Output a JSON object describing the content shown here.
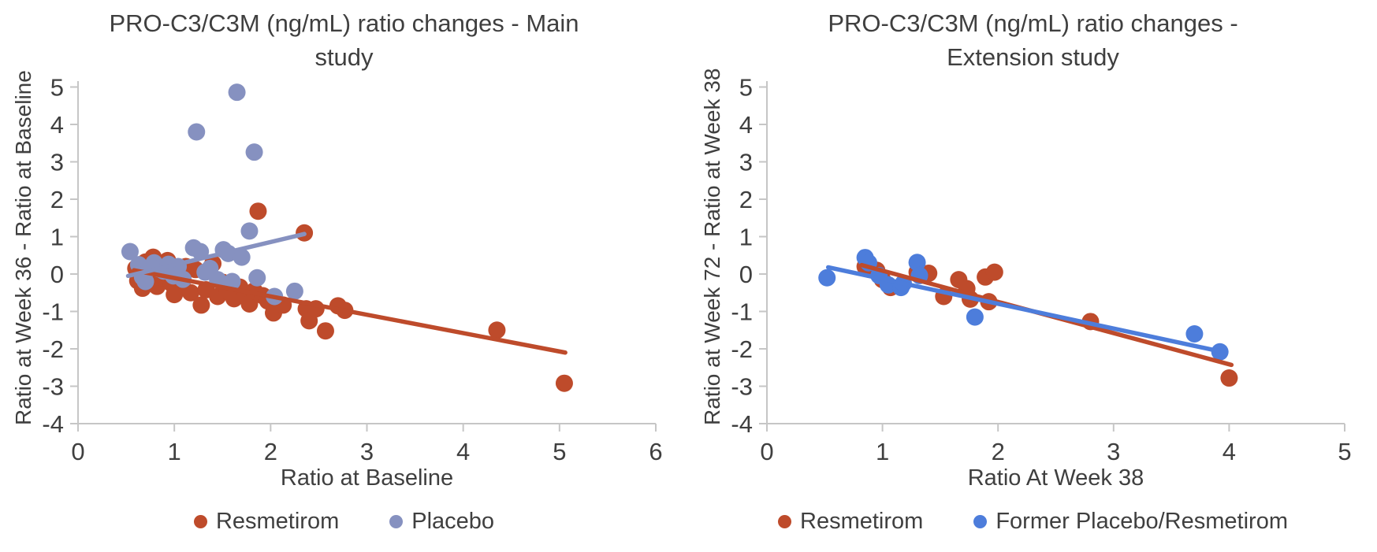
{
  "page": {
    "background": "#ffffff",
    "text_color": "#3f3f3f",
    "axis_color": "#c6c6c6"
  },
  "chart_data": [
    {
      "type": "scatter",
      "title": "PRO-C3/C3M (ng/mL) ratio changes - Main study",
      "title_lines": [
        "PRO-C3/C3M (ng/mL) ratio changes - Main",
        "study"
      ],
      "xlabel": "Ratio at Baseline",
      "ylabel": "Ratio at Week 36 - Ratio at Baseline",
      "xlim": [
        0,
        6
      ],
      "ylim": [
        -4,
        5
      ],
      "xticks": [
        0,
        1,
        2,
        3,
        4,
        5,
        6
      ],
      "yticks": [
        5,
        4,
        3,
        2,
        1,
        0,
        -1,
        -2,
        -3,
        -4
      ],
      "grid": false,
      "legend_position": "bottom",
      "series": [
        {
          "name": "Resmetirom",
          "color": "#be4b2b",
          "points": [
            [
              0.6,
              0.15
            ],
            [
              0.62,
              -0.18
            ],
            [
              0.67,
              -0.38
            ],
            [
              0.7,
              0.32
            ],
            [
              0.72,
              -0.05
            ],
            [
              0.76,
              0.12
            ],
            [
              0.78,
              0.45
            ],
            [
              0.82,
              -0.33
            ],
            [
              0.85,
              0.22
            ],
            [
              0.88,
              -0.1
            ],
            [
              0.93,
              0.36
            ],
            [
              0.97,
              -0.25
            ],
            [
              1.0,
              -0.55
            ],
            [
              1.05,
              0.1
            ],
            [
              1.08,
              -0.3
            ],
            [
              1.12,
              0.2
            ],
            [
              1.17,
              -0.5
            ],
            [
              1.22,
              0.12
            ],
            [
              1.28,
              -0.83
            ],
            [
              1.33,
              -0.42
            ],
            [
              1.4,
              0.28
            ],
            [
              1.45,
              -0.6
            ],
            [
              1.5,
              -0.22
            ],
            [
              1.55,
              -0.45
            ],
            [
              1.62,
              -0.66
            ],
            [
              1.68,
              -0.35
            ],
            [
              1.73,
              -0.52
            ],
            [
              1.78,
              -0.8
            ],
            [
              1.83,
              -0.45
            ],
            [
              1.87,
              1.68
            ],
            [
              1.92,
              -0.58
            ],
            [
              1.97,
              -0.72
            ],
            [
              2.03,
              -1.04
            ],
            [
              2.13,
              -0.83
            ],
            [
              2.35,
              1.1
            ],
            [
              2.37,
              -0.93
            ],
            [
              2.4,
              -1.25
            ],
            [
              2.47,
              -0.93
            ],
            [
              2.57,
              -1.52
            ],
            [
              2.7,
              -0.85
            ],
            [
              2.77,
              -0.97
            ],
            [
              4.35,
              -1.5
            ],
            [
              5.05,
              -2.92
            ]
          ],
          "trendline": {
            "from": [
              0.58,
              0.1
            ],
            "to": [
              5.06,
              -2.1
            ]
          }
        },
        {
          "name": "Placebo",
          "color": "#8691c0",
          "points": [
            [
              0.54,
              0.6
            ],
            [
              0.63,
              0.25
            ],
            [
              0.67,
              -0.08
            ],
            [
              0.7,
              -0.2
            ],
            [
              0.74,
              0.15
            ],
            [
              0.79,
              0.3
            ],
            [
              0.84,
              0.14
            ],
            [
              0.89,
              0.08
            ],
            [
              0.94,
              0.26
            ],
            [
              0.99,
              -0.05
            ],
            [
              1.04,
              0.2
            ],
            [
              1.09,
              -0.14
            ],
            [
              1.2,
              0.7
            ],
            [
              1.23,
              3.8
            ],
            [
              1.27,
              0.6
            ],
            [
              1.32,
              0.05
            ],
            [
              1.37,
              0.15
            ],
            [
              1.45,
              -0.15
            ],
            [
              1.51,
              0.65
            ],
            [
              1.56,
              0.55
            ],
            [
              1.6,
              -0.2
            ],
            [
              1.65,
              4.86
            ],
            [
              1.7,
              0.45
            ],
            [
              1.78,
              1.15
            ],
            [
              1.83,
              3.26
            ],
            [
              1.86,
              -0.1
            ],
            [
              2.04,
              -0.6
            ],
            [
              2.25,
              -0.46
            ]
          ],
          "trendline": {
            "from": [
              0.52,
              -0.05
            ],
            "to": [
              2.35,
              1.07
            ]
          }
        }
      ]
    },
    {
      "type": "scatter",
      "title": "PRO-C3/C3M (ng/mL) ratio changes - Extension study",
      "title_lines": [
        "PRO-C3/C3M (ng/mL) ratio changes -",
        "Extension study"
      ],
      "xlabel": "Ratio At Week 38",
      "ylabel": "Ratio at Week 72 - Ratio at Week 38",
      "xlim": [
        0,
        5
      ],
      "ylim": [
        -4,
        5
      ],
      "xticks": [
        0,
        1,
        2,
        3,
        4,
        5
      ],
      "yticks": [
        5,
        4,
        3,
        2,
        1,
        0,
        -1,
        -2,
        -3,
        -4
      ],
      "grid": false,
      "legend_position": "bottom",
      "series": [
        {
          "name": "Resmetirom",
          "color": "#be4b2b",
          "points": [
            [
              0.85,
              0.2
            ],
            [
              0.88,
              0.13
            ],
            [
              0.95,
              0.1
            ],
            [
              1.0,
              -0.15
            ],
            [
              1.07,
              -0.36
            ],
            [
              1.3,
              0.05
            ],
            [
              1.4,
              0.02
            ],
            [
              1.53,
              -0.6
            ],
            [
              1.66,
              -0.15
            ],
            [
              1.73,
              -0.39
            ],
            [
              1.76,
              -0.67
            ],
            [
              1.89,
              -0.08
            ],
            [
              1.92,
              -0.74
            ],
            [
              1.97,
              0.05
            ],
            [
              2.8,
              -1.27
            ],
            [
              4.0,
              -2.78
            ]
          ],
          "trendline": {
            "from": [
              0.82,
              0.24
            ],
            "to": [
              4.02,
              -2.43
            ]
          }
        },
        {
          "name": "Former Placebo/Resmetirom",
          "color": "#4d7ddb",
          "points": [
            [
              0.52,
              -0.1
            ],
            [
              0.85,
              0.44
            ],
            [
              0.88,
              0.3
            ],
            [
              0.97,
              -0.04
            ],
            [
              1.05,
              -0.29
            ],
            [
              1.16,
              -0.36
            ],
            [
              1.18,
              -0.25
            ],
            [
              1.3,
              0.31
            ],
            [
              1.32,
              -0.04
            ],
            [
              1.8,
              -1.15
            ],
            [
              3.7,
              -1.6
            ],
            [
              3.92,
              -2.08
            ]
          ],
          "trendline": {
            "from": [
              0.53,
              0.18
            ],
            "to": [
              3.91,
              -2.06
            ]
          }
        }
      ]
    }
  ]
}
